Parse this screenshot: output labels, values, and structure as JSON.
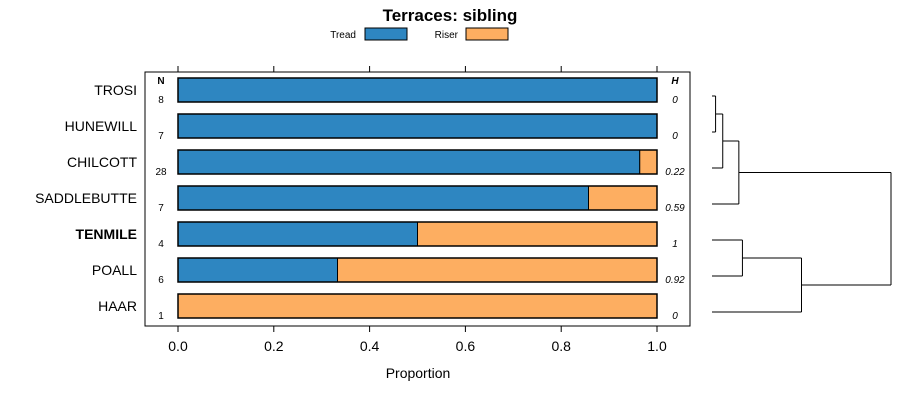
{
  "chart_data": {
    "type": "bar",
    "orientation": "horizontal",
    "stacked": true,
    "title": "Terraces: sibling",
    "xlabel": "Proportion",
    "ylabel": "",
    "xlim": [
      0,
      1
    ],
    "xticks": [
      "0.0",
      "0.2",
      "0.4",
      "0.6",
      "0.8",
      "1.0"
    ],
    "legend": {
      "position": "top",
      "entries": [
        "Tread",
        "Riser"
      ]
    },
    "categories": [
      "TROSI",
      "HUNEWILL",
      "CHILCOTT",
      "SADDLEBUTTE",
      "TENMILE",
      "POALL",
      "HAAR"
    ],
    "highlighted": "TENMILE",
    "series": [
      {
        "name": "Tread",
        "color": "#2e86c1",
        "values": [
          1.0,
          1.0,
          0.964,
          0.857,
          0.5,
          0.333,
          0.0
        ]
      },
      {
        "name": "Riser",
        "color": "#fdae61",
        "values": [
          0.0,
          0.0,
          0.036,
          0.143,
          0.5,
          0.667,
          1.0
        ]
      }
    ],
    "n_header": "N",
    "n_values": [
      "8",
      "7",
      "28",
      "7",
      "4",
      "6",
      "1"
    ],
    "h_header": "H",
    "h_values": [
      "0",
      "0",
      "0.22",
      "0.59",
      "1",
      "0.92",
      "0"
    ],
    "dendrogram": {
      "leaves": [
        "TROSI",
        "HUNEWILL",
        "CHILCOTT",
        "SADDLEBUTTE",
        "TENMILE",
        "POALL",
        "HAAR"
      ],
      "merges": [
        {
          "left": "TROSI",
          "right": "HUNEWILL",
          "height": 0.02
        },
        {
          "left": "TROSI+HUNEWILL",
          "right": "CHILCOTT",
          "height": 0.06
        },
        {
          "left": "TROSI+HUNEWILL+CHILCOTT",
          "right": "SADDLEBUTTE",
          "height": 0.15
        },
        {
          "left": "TENMILE",
          "right": "POALL",
          "height": 0.17
        },
        {
          "left": "TENMILE+POALL",
          "right": "HAAR",
          "height": 0.5
        },
        {
          "left": "upper",
          "right": "lower",
          "height": 1.0
        }
      ]
    }
  }
}
